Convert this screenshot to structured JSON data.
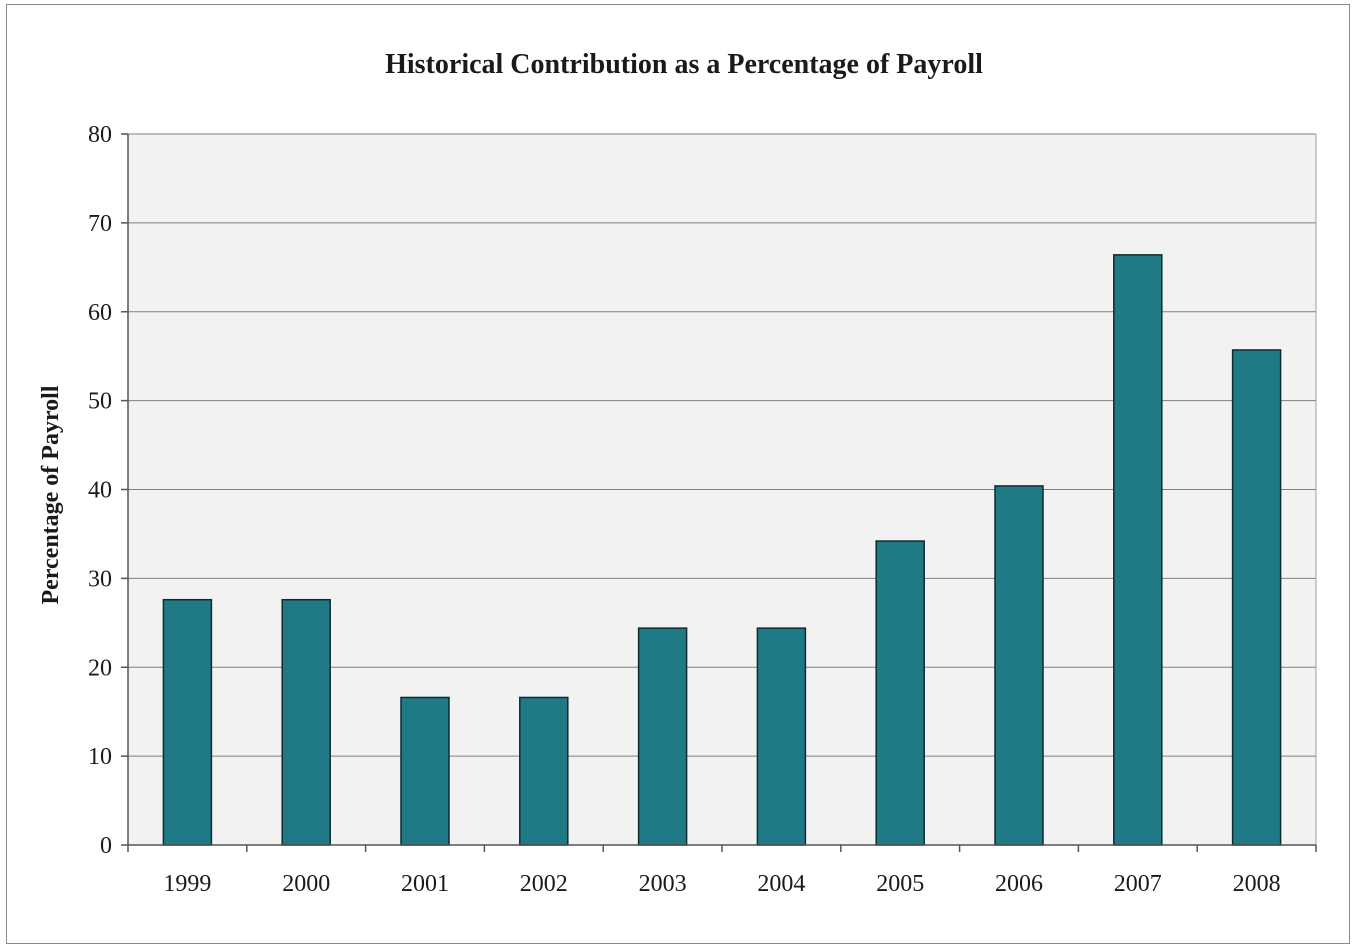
{
  "chart_data": {
    "type": "bar",
    "title": "Historical Contribution as a Percentage of Payroll",
    "xlabel": "",
    "ylabel": "Percentage of Payroll",
    "categories": [
      "1999",
      "2000",
      "2001",
      "2002",
      "2003",
      "2004",
      "2005",
      "2006",
      "2007",
      "2008"
    ],
    "values": [
      27.6,
      27.6,
      16.6,
      16.6,
      24.4,
      24.4,
      34.2,
      40.4,
      66.4,
      55.7
    ],
    "ylim": [
      0,
      80
    ],
    "yticks": [
      0,
      10,
      20,
      30,
      40,
      50,
      60,
      70,
      80
    ],
    "grid": true,
    "legend": "none"
  },
  "colors": {
    "bar_fill": "#1f7a86",
    "bar_stroke": "#0d2b30",
    "plot_background": "#f2f2f2",
    "gridline": "#7f7f7f",
    "axis": "#555555"
  }
}
